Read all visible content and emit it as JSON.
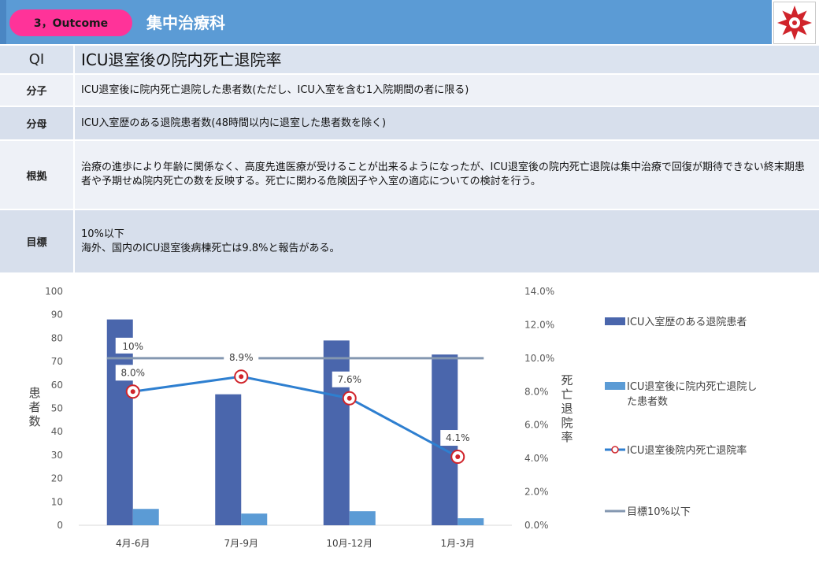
{
  "header": {
    "section_label": "3，Outcome",
    "department": "集中治療科",
    "colors": {
      "bar": "#5b9bd5",
      "pill": "#ff3399"
    }
  },
  "qi_table": {
    "qi": {
      "label": "QI",
      "value": "ICU退室後の院内死亡退院率"
    },
    "numerator": {
      "label": "分子",
      "value": "ICU退室後に院内死亡退院した患者数(ただし、ICU入室を含む1入院期間の者に限る)"
    },
    "denominator": {
      "label": "分母",
      "value": "ICU入室歴のある退院患者数(48時間以内に退室した患者数を除く)"
    },
    "basis": {
      "label": "根拠",
      "value": "治療の進歩により年齢に関係なく、高度先進医療が受けることが出来るようになったが、ICU退室後の院内死亡退院は集中治療で回復が期待できない終末期患者や予期せぬ院内死亡の数を反映する。死亡に関わる危険因子や入室の適応についての検討を行う。"
    },
    "goal": {
      "label": "目標",
      "line1": "10%以下",
      "line2": "海外、国内のICU退室後病棟死亡は9.8%と報告がある。"
    }
  },
  "chart_data": {
    "type": "bar",
    "categories": [
      "4月-6月",
      "7月-9月",
      "10月-12月",
      "1月-3月"
    ],
    "y_left": {
      "label": "患者数",
      "lim": [
        0,
        100
      ],
      "ticks": [
        0,
        10,
        20,
        30,
        40,
        50,
        60,
        70,
        80,
        90,
        100
      ]
    },
    "y_right": {
      "label": "死亡退院率",
      "lim": [
        0,
        14
      ],
      "ticks": [
        "0.0%",
        "2.0%",
        "4.0%",
        "6.0%",
        "8.0%",
        "10.0%",
        "12.0%",
        "14.0%"
      ]
    },
    "series": [
      {
        "name": "ICU入室歴のある退院患者",
        "type": "bar",
        "axis": "left",
        "color": "#4a66ac",
        "values": [
          88,
          56,
          79,
          73
        ]
      },
      {
        "name": "ICU退室後に院内死亡退院した患者数",
        "type": "bar",
        "axis": "left",
        "color": "#5b9bd5",
        "values": [
          7,
          5,
          6,
          3
        ]
      },
      {
        "name": "ICU退室後院内死亡退院率",
        "type": "line",
        "axis": "right",
        "color": "#2e7fd0",
        "values": [
          8.0,
          8.9,
          7.6,
          4.1
        ],
        "labels": [
          "8.0%",
          "8.9%",
          "7.6%",
          "4.1%"
        ]
      },
      {
        "name": "目標10%以下",
        "type": "line",
        "axis": "right",
        "color": "#8497b0",
        "values": [
          10,
          10,
          10,
          10
        ],
        "labels": [
          "10%"
        ]
      }
    ],
    "legend_position": "right",
    "grid": false
  }
}
